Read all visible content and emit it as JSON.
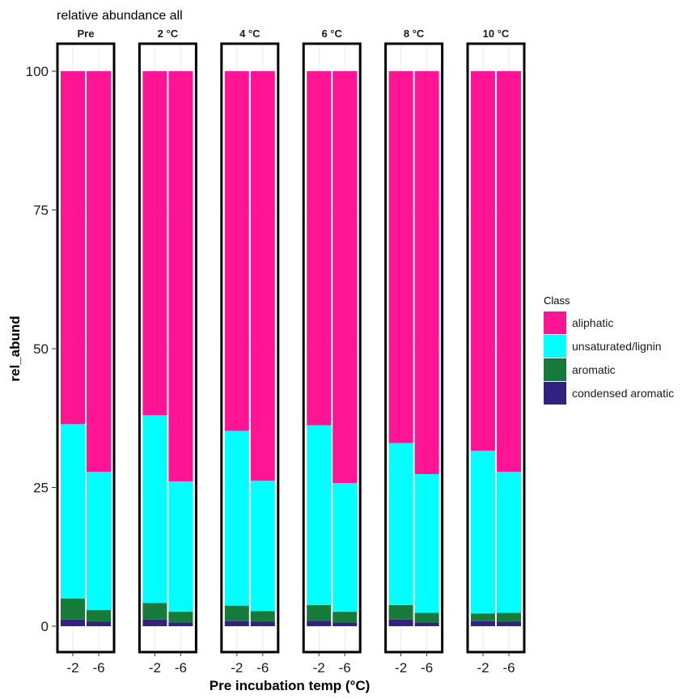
{
  "chart_data": {
    "type": "bar",
    "stacked": true,
    "title": "relative abundance all",
    "xlabel": "Pre incubation temp (°C)",
    "ylabel": "rel_abund",
    "ylim": [
      0,
      100
    ],
    "yticks": [
      0,
      25,
      50,
      75,
      100
    ],
    "grid": true,
    "legend": {
      "title": "Class",
      "position": "right",
      "entries": [
        "aliphatic",
        "unsaturated/lignin",
        "aromatic",
        "condensed aromatic"
      ]
    },
    "categories": [
      "-2",
      "-6"
    ],
    "facets": [
      "Pre",
      "2 °C",
      "4 °C",
      "6 °C",
      "8 °C",
      "10 °C"
    ],
    "colors": {
      "aliphatic": "#ff1493",
      "unsaturated/lignin": "#00ffff",
      "aromatic": "#157a3a",
      "condensed aromatic": "#32217f"
    },
    "series": [
      {
        "name": "condensed aromatic",
        "values": [
          [
            1.2,
            0.8
          ],
          [
            1.2,
            0.7
          ],
          [
            0.9,
            0.8
          ],
          [
            1.0,
            0.7
          ],
          [
            1.2,
            0.7
          ],
          [
            0.9,
            0.8
          ]
        ]
      },
      {
        "name": "aromatic",
        "values": [
          [
            3.8,
            2.1
          ],
          [
            3.0,
            1.9
          ],
          [
            2.8,
            1.9
          ],
          [
            2.8,
            1.9
          ],
          [
            2.6,
            1.7
          ],
          [
            1.4,
            1.6
          ]
        ]
      },
      {
        "name": "unsaturated/lignin",
        "values": [
          [
            31.4,
            24.9
          ],
          [
            33.8,
            23.5
          ],
          [
            31.5,
            23.5
          ],
          [
            32.4,
            23.2
          ],
          [
            29.2,
            25.0
          ],
          [
            29.3,
            25.4
          ]
        ]
      },
      {
        "name": "aliphatic",
        "values": [
          [
            63.6,
            72.2
          ],
          [
            62.0,
            73.9
          ],
          [
            64.8,
            73.8
          ],
          [
            63.8,
            74.2
          ],
          [
            67.0,
            72.6
          ],
          [
            68.4,
            72.2
          ]
        ]
      }
    ]
  }
}
